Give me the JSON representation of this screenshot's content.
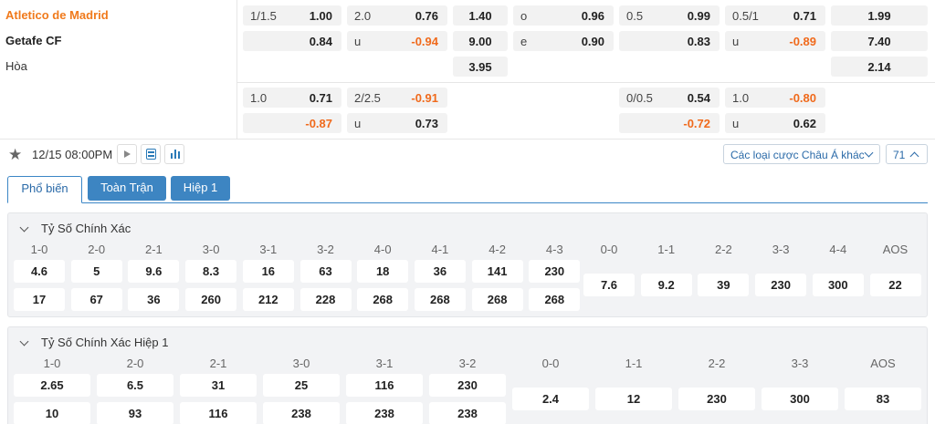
{
  "match": {
    "home": "Atletico de Madrid",
    "away": "Getafe CF",
    "draw": "Hòa"
  },
  "odds": {
    "row1": {
      "h1_line": "1/1.5",
      "h1_val": "1.00",
      "h2_line": "2.0",
      "h2_val": "0.76",
      "x1": "1.40",
      "o_label": "o",
      "o_val": "0.96",
      "h3_line": "0.5",
      "h3_val": "0.99",
      "h4_line": "0.5/1",
      "h4_val": "0.71",
      "x2": "1.99"
    },
    "row2": {
      "h1_val": "0.84",
      "u_label": "u",
      "u_val": "-0.94",
      "x1": "9.00",
      "e_label": "e",
      "e_val": "0.90",
      "h3_val": "0.83",
      "u2_label": "u",
      "u2_val": "-0.89",
      "x2": "7.40"
    },
    "row3": {
      "x1": "3.95",
      "x2": "2.14"
    },
    "row4": {
      "h1_line": "1.0",
      "h1_val": "0.71",
      "h2_line": "2/2.5",
      "h2_val": "-0.91",
      "h3_line": "0/0.5",
      "h3_val": "0.54",
      "h4_line": "1.0",
      "h4_val": "-0.80"
    },
    "row5": {
      "h1_val": "-0.87",
      "u_label": "u",
      "u_val": "0.73",
      "h3_val": "-0.72",
      "u2_label": "u",
      "u2_val": "0.62"
    }
  },
  "toolbar": {
    "datetime": "12/15 08:00PM",
    "dropdown_label": "Các loại cược Châu Á khác",
    "count": "71"
  },
  "tabs": [
    "Phổ biến",
    "Toàn Trận",
    "Hiệp 1"
  ],
  "sections": [
    {
      "title": "Tỷ Số Chính Xác",
      "home_cols": [
        {
          "label": "1-0",
          "a": "4.6",
          "b": "17"
        },
        {
          "label": "2-0",
          "a": "5",
          "b": "67"
        },
        {
          "label": "2-1",
          "a": "9.6",
          "b": "36"
        },
        {
          "label": "3-0",
          "a": "8.3",
          "b": "260"
        },
        {
          "label": "3-1",
          "a": "16",
          "b": "212"
        },
        {
          "label": "3-2",
          "a": "63",
          "b": "228"
        },
        {
          "label": "4-0",
          "a": "18",
          "b": "268"
        },
        {
          "label": "4-1",
          "a": "36",
          "b": "268"
        },
        {
          "label": "4-2",
          "a": "141",
          "b": "268"
        },
        {
          "label": "4-3",
          "a": "230",
          "b": "268"
        }
      ],
      "draw_cols": [
        {
          "label": "0-0",
          "v": "7.6"
        },
        {
          "label": "1-1",
          "v": "9.2"
        },
        {
          "label": "2-2",
          "v": "39"
        },
        {
          "label": "3-3",
          "v": "230"
        },
        {
          "label": "4-4",
          "v": "300"
        },
        {
          "label": "AOS",
          "v": "22"
        }
      ]
    },
    {
      "title": "Tỷ Số Chính Xác Hiệp 1",
      "home_cols": [
        {
          "label": "1-0",
          "a": "2.65",
          "b": "10"
        },
        {
          "label": "2-0",
          "a": "6.5",
          "b": "93"
        },
        {
          "label": "2-1",
          "a": "31",
          "b": "116"
        },
        {
          "label": "3-0",
          "a": "25",
          "b": "238"
        },
        {
          "label": "3-1",
          "a": "116",
          "b": "238"
        },
        {
          "label": "3-2",
          "a": "230",
          "b": "238"
        }
      ],
      "draw_cols": [
        {
          "label": "0-0",
          "v": "2.4"
        },
        {
          "label": "1-1",
          "v": "12"
        },
        {
          "label": "2-2",
          "v": "230"
        },
        {
          "label": "3-3",
          "v": "300"
        },
        {
          "label": "AOS",
          "v": "83"
        }
      ]
    }
  ]
}
